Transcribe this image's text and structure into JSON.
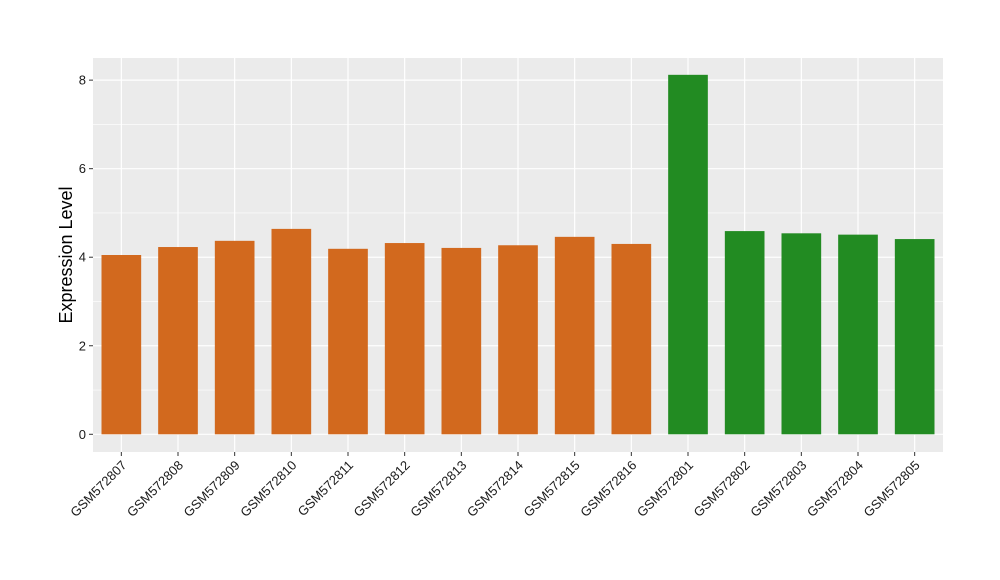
{
  "chart_data": {
    "type": "bar",
    "title": "",
    "xlabel": "",
    "ylabel": "Expression Level",
    "ylim": [
      -0.4,
      8.5
    ],
    "yticks": [
      0,
      2,
      4,
      6,
      8
    ],
    "grid": true,
    "legend": "none",
    "colors": {
      "panel": "#EBEBEB",
      "grid": "#FFFFFF",
      "group1": "#D2691E",
      "group2": "#228B22"
    },
    "categories": [
      "GSM572807",
      "GSM572808",
      "GSM572809",
      "GSM572810",
      "GSM572811",
      "GSM572812",
      "GSM572813",
      "GSM572814",
      "GSM572815",
      "GSM572816",
      "GSM572801",
      "GSM572802",
      "GSM572803",
      "GSM572804",
      "GSM572805"
    ],
    "values": [
      4.05,
      4.23,
      4.37,
      4.64,
      4.19,
      4.32,
      4.21,
      4.27,
      4.46,
      4.3,
      8.12,
      4.59,
      4.54,
      4.51,
      4.41
    ],
    "bar_colors": [
      "#D2691E",
      "#D2691E",
      "#D2691E",
      "#D2691E",
      "#D2691E",
      "#D2691E",
      "#D2691E",
      "#D2691E",
      "#D2691E",
      "#D2691E",
      "#228B22",
      "#228B22",
      "#228B22",
      "#228B22",
      "#228B22"
    ]
  }
}
